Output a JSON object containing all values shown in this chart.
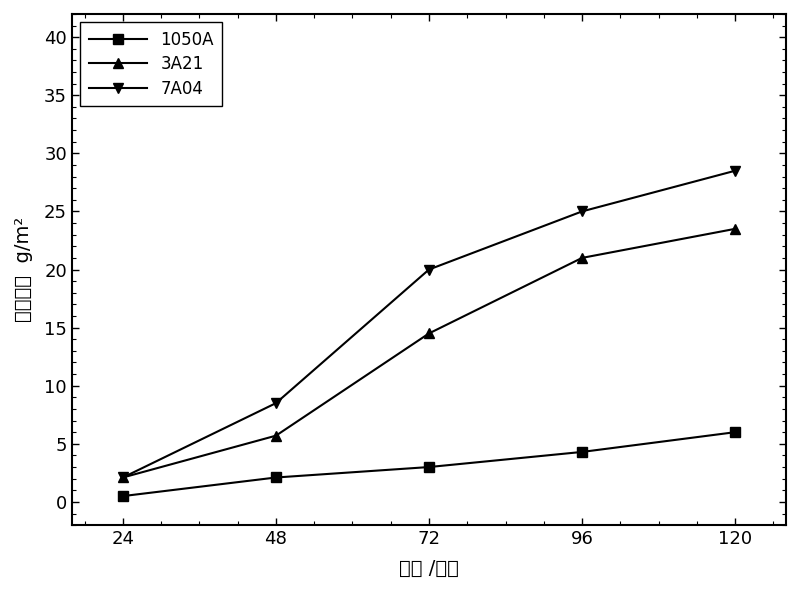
{
  "x": [
    24,
    48,
    72,
    96,
    120
  ],
  "series": [
    {
      "label": "1050A",
      "values": [
        0.5,
        2.1,
        3.0,
        4.3,
        6.0
      ],
      "color": "#000000",
      "marker": "s",
      "linestyle": "-"
    },
    {
      "label": "3A21",
      "values": [
        2.1,
        5.7,
        14.5,
        21.0,
        23.5
      ],
      "color": "#000000",
      "marker": "^",
      "linestyle": "-"
    },
    {
      "label": "7A04",
      "values": [
        2.1,
        8.5,
        20.0,
        25.0,
        28.5
      ],
      "color": "#000000",
      "marker": "v",
      "linestyle": "-"
    }
  ],
  "xlabel": "时间 /小时",
  "ylabel": "腐蚀失重  g/m²",
  "xlim": [
    16,
    128
  ],
  "ylim": [
    -2,
    42
  ],
  "xticks": [
    24,
    48,
    72,
    96,
    120
  ],
  "yticks": [
    0,
    5,
    10,
    15,
    20,
    25,
    30,
    35,
    40
  ],
  "legend_loc": "upper left",
  "background_color": "#ffffff",
  "linewidth": 1.5,
  "markersize": 7,
  "tick_fontsize": 13,
  "label_fontsize": 14
}
